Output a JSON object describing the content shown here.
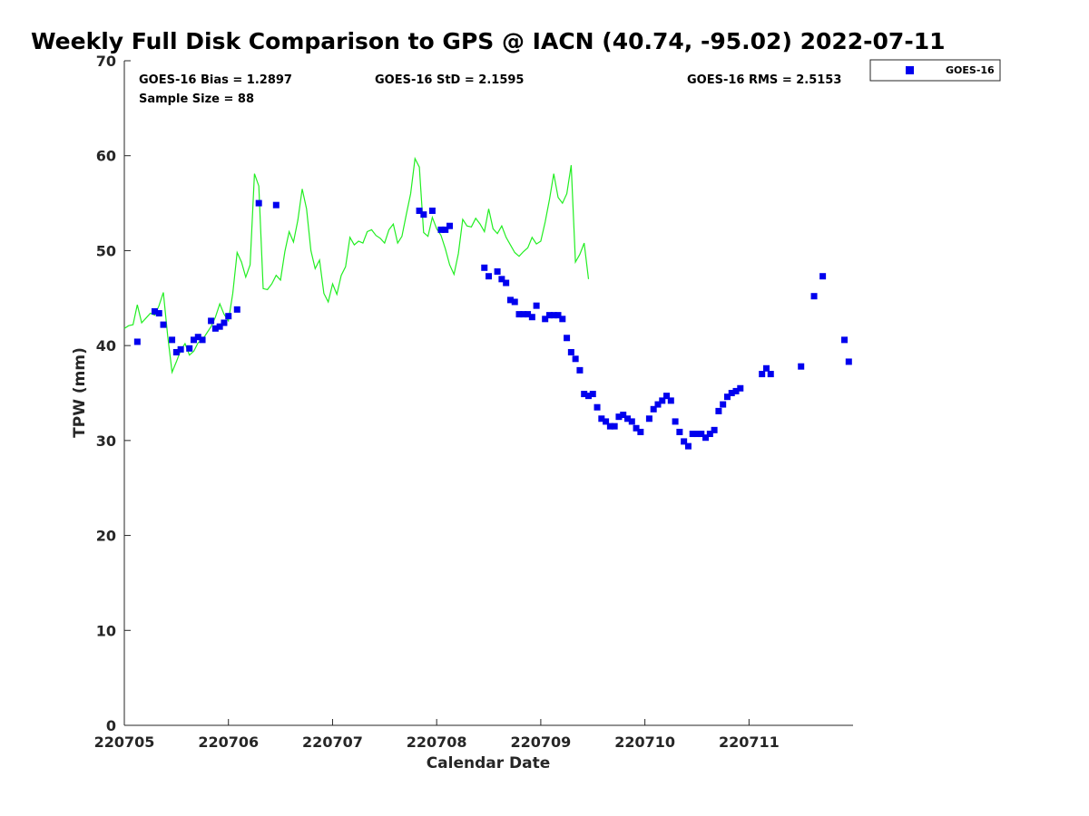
{
  "chart_data": {
    "type": "scatter",
    "title": "Weekly Full Disk Comparison to GPS @ IACN (40.74, -95.02) 2022-07-11",
    "xlabel": "Calendar Date",
    "ylabel": "TPW (mm)",
    "ylim": [
      0,
      70
    ],
    "xlim": [
      "2022-07-05 00:00",
      "2022-07-11 23:59"
    ],
    "x_ticks": [
      "220705",
      "220706",
      "220707",
      "220708",
      "220709",
      "220710",
      "220711"
    ],
    "y_ticks": [
      "0",
      "10",
      "20",
      "30",
      "40",
      "50",
      "60",
      "70"
    ],
    "grid": false,
    "legend": {
      "position": "top-right",
      "entries": [
        "GOES-16"
      ]
    },
    "stats": {
      "bias": "GOES-16 Bias = 1.2897",
      "std": "GOES-16 StD = 2.1595",
      "rms": "GOES-16 RMS = 2.5153",
      "sample_size": "Sample Size = 88"
    },
    "colors": {
      "goes": "#0000ee",
      "gps": "#22ee22"
    },
    "series": [
      {
        "name": "GOES-16",
        "style": "markers",
        "points": [
          [
            "2022-07-05 03:00",
            40.4
          ],
          [
            "2022-07-05 07:00",
            43.6
          ],
          [
            "2022-07-05 08:00",
            43.4
          ],
          [
            "2022-07-05 09:00",
            42.2
          ],
          [
            "2022-07-05 11:00",
            40.6
          ],
          [
            "2022-07-05 12:00",
            39.3
          ],
          [
            "2022-07-05 13:00",
            39.6
          ],
          [
            "2022-07-05 15:00",
            39.7
          ],
          [
            "2022-07-05 16:00",
            40.6
          ],
          [
            "2022-07-05 17:00",
            40.9
          ],
          [
            "2022-07-05 18:00",
            40.6
          ],
          [
            "2022-07-05 20:00",
            42.6
          ],
          [
            "2022-07-05 21:00",
            41.8
          ],
          [
            "2022-07-05 22:00",
            42.0
          ],
          [
            "2022-07-05 23:00",
            42.4
          ],
          [
            "2022-07-06 00:00",
            43.1
          ],
          [
            "2022-07-06 02:00",
            43.8
          ],
          [
            "2022-07-06 07:00",
            55.0
          ],
          [
            "2022-07-06 11:00",
            54.8
          ],
          [
            "2022-07-07 20:00",
            54.2
          ],
          [
            "2022-07-07 21:00",
            53.8
          ],
          [
            "2022-07-07 23:00",
            54.2
          ],
          [
            "2022-07-08 01:00",
            52.2
          ],
          [
            "2022-07-08 02:00",
            52.2
          ],
          [
            "2022-07-08 03:00",
            52.6
          ],
          [
            "2022-07-08 11:00",
            48.2
          ],
          [
            "2022-07-08 12:00",
            47.3
          ],
          [
            "2022-07-08 14:00",
            47.8
          ],
          [
            "2022-07-08 15:00",
            47.0
          ],
          [
            "2022-07-08 16:00",
            46.6
          ],
          [
            "2022-07-08 17:00",
            44.8
          ],
          [
            "2022-07-08 18:00",
            44.6
          ],
          [
            "2022-07-08 19:00",
            43.3
          ],
          [
            "2022-07-08 20:00",
            43.3
          ],
          [
            "2022-07-08 21:00",
            43.3
          ],
          [
            "2022-07-08 22:00",
            43.0
          ],
          [
            "2022-07-08 23:00",
            44.2
          ],
          [
            "2022-07-09 01:00",
            42.8
          ],
          [
            "2022-07-09 02:00",
            43.2
          ],
          [
            "2022-07-09 03:00",
            43.2
          ],
          [
            "2022-07-09 04:00",
            43.2
          ],
          [
            "2022-07-09 05:00",
            42.8
          ],
          [
            "2022-07-09 06:00",
            40.8
          ],
          [
            "2022-07-09 07:00",
            39.3
          ],
          [
            "2022-07-09 08:00",
            38.6
          ],
          [
            "2022-07-09 09:00",
            37.4
          ],
          [
            "2022-07-09 10:00",
            34.9
          ],
          [
            "2022-07-09 11:00",
            34.7
          ],
          [
            "2022-07-09 12:00",
            34.9
          ],
          [
            "2022-07-09 13:00",
            33.5
          ],
          [
            "2022-07-09 14:00",
            32.3
          ],
          [
            "2022-07-09 15:00",
            32.0
          ],
          [
            "2022-07-09 16:00",
            31.5
          ],
          [
            "2022-07-09 17:00",
            31.5
          ],
          [
            "2022-07-09 18:00",
            32.5
          ],
          [
            "2022-07-09 19:00",
            32.7
          ],
          [
            "2022-07-09 20:00",
            32.3
          ],
          [
            "2022-07-09 21:00",
            32.0
          ],
          [
            "2022-07-09 22:00",
            31.3
          ],
          [
            "2022-07-09 23:00",
            30.9
          ],
          [
            "2022-07-10 01:00",
            32.3
          ],
          [
            "2022-07-10 02:00",
            33.3
          ],
          [
            "2022-07-10 03:00",
            33.8
          ],
          [
            "2022-07-10 04:00",
            34.2
          ],
          [
            "2022-07-10 05:00",
            34.7
          ],
          [
            "2022-07-10 06:00",
            34.2
          ],
          [
            "2022-07-10 07:00",
            32.0
          ],
          [
            "2022-07-10 08:00",
            30.9
          ],
          [
            "2022-07-10 09:00",
            29.9
          ],
          [
            "2022-07-10 10:00",
            29.4
          ],
          [
            "2022-07-10 11:00",
            30.7
          ],
          [
            "2022-07-10 12:00",
            30.7
          ],
          [
            "2022-07-10 13:00",
            30.7
          ],
          [
            "2022-07-10 14:00",
            30.3
          ],
          [
            "2022-07-10 15:00",
            30.7
          ],
          [
            "2022-07-10 16:00",
            31.1
          ],
          [
            "2022-07-10 17:00",
            33.1
          ],
          [
            "2022-07-10 18:00",
            33.8
          ],
          [
            "2022-07-10 19:00",
            34.6
          ],
          [
            "2022-07-10 20:00",
            35.0
          ],
          [
            "2022-07-10 21:00",
            35.2
          ],
          [
            "2022-07-10 22:00",
            35.5
          ],
          [
            "2022-07-11 03:00",
            37.0
          ],
          [
            "2022-07-11 04:00",
            37.6
          ],
          [
            "2022-07-11 05:00",
            37.0
          ],
          [
            "2022-07-11 12:00",
            37.8
          ],
          [
            "2022-07-11 15:00",
            45.2
          ],
          [
            "2022-07-11 17:00",
            47.3
          ],
          [
            "2022-07-11 22:00",
            40.6
          ],
          [
            "2022-07-11 23:00",
            38.3
          ]
        ]
      },
      {
        "style": "line",
        "points": [
          [
            "2022-07-05 00:00",
            41.8
          ],
          [
            "2022-07-05 01:00",
            42.1
          ],
          [
            "2022-07-05 02:00",
            42.2
          ],
          [
            "2022-07-05 03:00",
            44.3
          ],
          [
            "2022-07-05 04:00",
            42.4
          ],
          [
            "2022-07-05 05:00",
            42.9
          ],
          [
            "2022-07-05 06:00",
            43.4
          ],
          [
            "2022-07-05 07:00",
            43.2
          ],
          [
            "2022-07-05 08:00",
            44.2
          ],
          [
            "2022-07-05 09:00",
            45.6
          ],
          [
            "2022-07-05 10:00",
            41.0
          ],
          [
            "2022-07-05 11:00",
            37.2
          ],
          [
            "2022-07-05 12:00",
            38.3
          ],
          [
            "2022-07-05 13:00",
            39.5
          ],
          [
            "2022-07-05 14:00",
            40.2
          ],
          [
            "2022-07-05 15:00",
            39.0
          ],
          [
            "2022-07-05 16:00",
            39.4
          ],
          [
            "2022-07-05 17:00",
            40.3
          ],
          [
            "2022-07-05 18:00",
            40.6
          ],
          [
            "2022-07-05 19:00",
            41.3
          ],
          [
            "2022-07-05 20:00",
            42.0
          ],
          [
            "2022-07-05 21:00",
            43.0
          ],
          [
            "2022-07-05 22:00",
            44.4
          ],
          [
            "2022-07-05 23:00",
            43.3
          ],
          [
            "2022-07-06 00:00",
            42.6
          ],
          [
            "2022-07-06 01:00",
            45.5
          ],
          [
            "2022-07-06 02:00",
            49.8
          ],
          [
            "2022-07-06 03:00",
            48.8
          ],
          [
            "2022-07-06 04:00",
            47.2
          ],
          [
            "2022-07-06 05:00",
            48.5
          ],
          [
            "2022-07-06 06:00",
            58.1
          ],
          [
            "2022-07-06 07:00",
            56.8
          ],
          [
            "2022-07-06 08:00",
            46.0
          ],
          [
            "2022-07-06 09:00",
            45.9
          ],
          [
            "2022-07-06 10:00",
            46.5
          ],
          [
            "2022-07-06 11:00",
            47.4
          ],
          [
            "2022-07-06 12:00",
            46.9
          ],
          [
            "2022-07-06 13:00",
            49.9
          ],
          [
            "2022-07-06 14:00",
            52.0
          ],
          [
            "2022-07-06 15:00",
            50.9
          ],
          [
            "2022-07-06 16:00",
            53.2
          ],
          [
            "2022-07-06 17:00",
            56.5
          ],
          [
            "2022-07-06 18:00",
            54.4
          ],
          [
            "2022-07-06 19:00",
            50.0
          ],
          [
            "2022-07-06 20:00",
            48.1
          ],
          [
            "2022-07-06 21:00",
            49.0
          ],
          [
            "2022-07-06 22:00",
            45.5
          ],
          [
            "2022-07-06 23:00",
            44.6
          ],
          [
            "2022-07-07 00:00",
            46.5
          ],
          [
            "2022-07-07 01:00",
            45.4
          ],
          [
            "2022-07-07 02:00",
            47.4
          ],
          [
            "2022-07-07 03:00",
            48.3
          ],
          [
            "2022-07-07 04:00",
            51.4
          ],
          [
            "2022-07-07 05:00",
            50.6
          ],
          [
            "2022-07-07 06:00",
            51.0
          ],
          [
            "2022-07-07 07:00",
            50.8
          ],
          [
            "2022-07-07 08:00",
            52.0
          ],
          [
            "2022-07-07 09:00",
            52.2
          ],
          [
            "2022-07-07 10:00",
            51.6
          ],
          [
            "2022-07-07 11:00",
            51.3
          ],
          [
            "2022-07-07 12:00",
            50.8
          ],
          [
            "2022-07-07 13:00",
            52.2
          ],
          [
            "2022-07-07 14:00",
            52.8
          ],
          [
            "2022-07-07 15:00",
            50.8
          ],
          [
            "2022-07-07 16:00",
            51.5
          ],
          [
            "2022-07-07 17:00",
            53.8
          ],
          [
            "2022-07-07 18:00",
            56.0
          ],
          [
            "2022-07-07 19:00",
            59.7
          ],
          [
            "2022-07-07 20:00",
            58.8
          ],
          [
            "2022-07-07 21:00",
            51.9
          ],
          [
            "2022-07-07 22:00",
            51.5
          ],
          [
            "2022-07-07 23:00",
            53.5
          ],
          [
            "2022-07-08 00:00",
            52.3
          ],
          [
            "2022-07-08 01:00",
            51.6
          ],
          [
            "2022-07-08 02:00",
            50.2
          ],
          [
            "2022-07-08 03:00",
            48.5
          ],
          [
            "2022-07-08 04:00",
            47.5
          ],
          [
            "2022-07-08 05:00",
            49.7
          ],
          [
            "2022-07-08 06:00",
            53.3
          ],
          [
            "2022-07-08 07:00",
            52.6
          ],
          [
            "2022-07-08 08:00",
            52.5
          ],
          [
            "2022-07-08 09:00",
            53.4
          ],
          [
            "2022-07-08 10:00",
            52.8
          ],
          [
            "2022-07-08 11:00",
            52.0
          ],
          [
            "2022-07-08 12:00",
            54.4
          ],
          [
            "2022-07-08 13:00",
            52.3
          ],
          [
            "2022-07-08 14:00",
            51.8
          ],
          [
            "2022-07-08 15:00",
            52.6
          ],
          [
            "2022-07-08 16:00",
            51.4
          ],
          [
            "2022-07-08 17:00",
            50.6
          ],
          [
            "2022-07-08 18:00",
            49.8
          ],
          [
            "2022-07-08 19:00",
            49.4
          ],
          [
            "2022-07-08 20:00",
            49.9
          ],
          [
            "2022-07-08 21:00",
            50.3
          ],
          [
            "2022-07-08 22:00",
            51.4
          ],
          [
            "2022-07-08 23:00",
            50.7
          ],
          [
            "2022-07-09 00:00",
            51.0
          ],
          [
            "2022-07-09 01:00",
            53.0
          ],
          [
            "2022-07-09 02:00",
            55.4
          ],
          [
            "2022-07-09 03:00",
            58.1
          ],
          [
            "2022-07-09 04:00",
            55.6
          ],
          [
            "2022-07-09 05:00",
            55.0
          ],
          [
            "2022-07-09 06:00",
            56.0
          ],
          [
            "2022-07-09 07:00",
            59.0
          ],
          [
            "2022-07-09 08:00",
            48.8
          ],
          [
            "2022-07-09 09:00",
            49.6
          ],
          [
            "2022-07-09 10:00",
            50.8
          ],
          [
            "2022-07-09 11:00",
            47.0
          ]
        ]
      }
    ]
  }
}
